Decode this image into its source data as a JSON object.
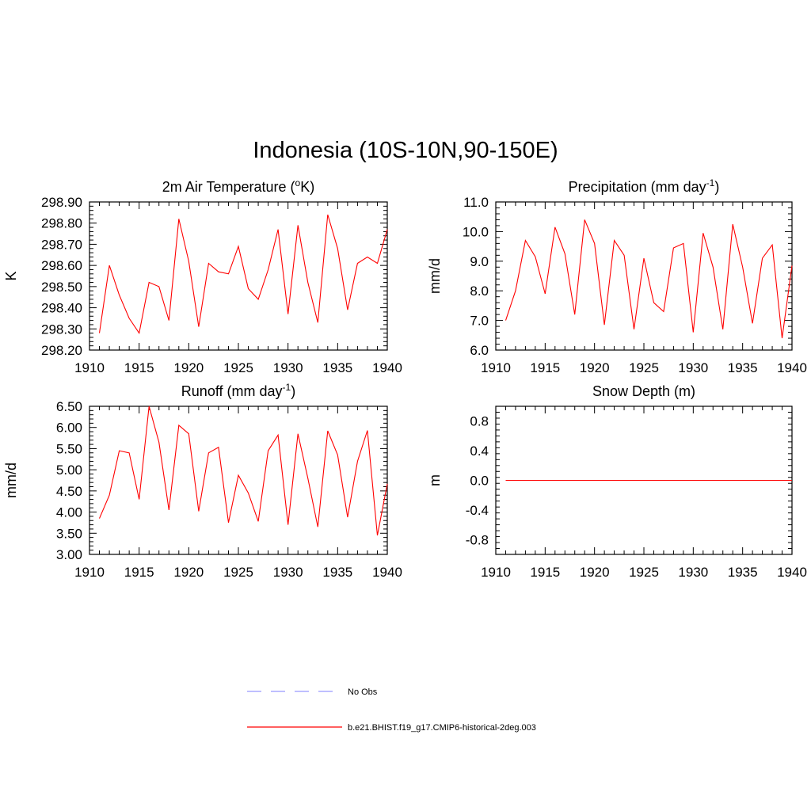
{
  "title": "Indonesia (10S-10N,90-150E)",
  "colors": {
    "model": "#ff0000",
    "obs": "#9999ff",
    "axis": "#000000"
  },
  "legend": {
    "placement": "bottom-center",
    "entries": [
      {
        "label": "No Obs",
        "style": "dashed",
        "color": "#9999ff"
      },
      {
        "label": "b.e21.BHIST.f19_g17.CMIP6-historical-2deg.003",
        "style": "solid",
        "color": "#ff0000"
      }
    ]
  },
  "chart_data": [
    {
      "type": "line",
      "title": "2m Air Temperature (oK)",
      "title_main": "2m Air Temperature (",
      "title_sup": "o",
      "title_after": "K)",
      "xlabel": "",
      "ylabel": "K",
      "xlim": [
        1910,
        1940
      ],
      "ylim": [
        298.2,
        298.9
      ],
      "xticks": [
        "1910",
        "1915",
        "1920",
        "1925",
        "1930",
        "1935",
        "1940"
      ],
      "yticks": [
        "298.20",
        "298.30",
        "298.40",
        "298.50",
        "298.60",
        "298.70",
        "298.80",
        "298.90"
      ],
      "grid": false,
      "series": [
        {
          "color": "#ff0000",
          "x": [
            1911,
            1912,
            1913,
            1914,
            1915,
            1916,
            1917,
            1918,
            1919,
            1920,
            1921,
            1922,
            1923,
            1924,
            1925,
            1926,
            1927,
            1928,
            1929,
            1930,
            1931,
            1932,
            1933,
            1934,
            1935,
            1936,
            1937,
            1938,
            1939,
            1940
          ],
          "values": [
            298.28,
            298.6,
            298.46,
            298.35,
            298.28,
            298.52,
            298.5,
            298.34,
            298.82,
            298.62,
            298.31,
            298.61,
            298.57,
            298.56,
            298.69,
            298.49,
            298.44,
            298.58,
            298.77,
            298.37,
            298.79,
            298.52,
            298.33,
            298.84,
            298.68,
            298.39,
            298.61,
            298.64,
            298.61,
            298.77
          ]
        }
      ]
    },
    {
      "type": "line",
      "title": "Precipitation (mm day-1)",
      "title_main": "Precipitation (mm day",
      "title_sup": "-1",
      "title_after": ")",
      "xlabel": "",
      "ylabel": "mm/d",
      "xlim": [
        1910,
        1940
      ],
      "ylim": [
        6.0,
        11.0
      ],
      "xticks": [
        "1910",
        "1915",
        "1920",
        "1925",
        "1930",
        "1935",
        "1940"
      ],
      "yticks": [
        "6.0",
        "7.0",
        "8.0",
        "9.0",
        "10.0",
        "11.0"
      ],
      "grid": false,
      "series": [
        {
          "color": "#ff0000",
          "x": [
            1911,
            1912,
            1913,
            1914,
            1915,
            1916,
            1917,
            1918,
            1919,
            1920,
            1921,
            1922,
            1923,
            1924,
            1925,
            1926,
            1927,
            1928,
            1929,
            1930,
            1931,
            1932,
            1933,
            1934,
            1935,
            1936,
            1937,
            1938,
            1939,
            1940
          ],
          "values": [
            7.0,
            8.0,
            9.7,
            9.15,
            7.9,
            10.15,
            9.25,
            7.2,
            10.4,
            9.6,
            6.85,
            9.7,
            9.2,
            6.7,
            9.1,
            7.6,
            7.3,
            9.45,
            9.6,
            6.6,
            9.95,
            8.8,
            6.7,
            10.25,
            8.8,
            6.9,
            9.1,
            9.55,
            6.4,
            8.85
          ]
        }
      ]
    },
    {
      "type": "line",
      "title": "Runoff (mm day-1)",
      "title_main": "Runoff (mm day",
      "title_sup": "-1",
      "title_after": ")",
      "xlabel": "",
      "ylabel": "mm/d",
      "xlim": [
        1910,
        1940
      ],
      "ylim": [
        3.0,
        6.5
      ],
      "xticks": [
        "1910",
        "1915",
        "1920",
        "1925",
        "1930",
        "1935",
        "1940"
      ],
      "yticks": [
        "3.00",
        "3.50",
        "4.00",
        "4.50",
        "5.00",
        "5.50",
        "6.00",
        "6.50"
      ],
      "grid": false,
      "series": [
        {
          "color": "#ff0000",
          "x": [
            1911,
            1912,
            1913,
            1914,
            1915,
            1916,
            1917,
            1918,
            1919,
            1920,
            1921,
            1922,
            1923,
            1924,
            1925,
            1926,
            1927,
            1928,
            1929,
            1930,
            1931,
            1932,
            1933,
            1934,
            1935,
            1936,
            1937,
            1938,
            1939,
            1940
          ],
          "values": [
            3.85,
            4.4,
            5.45,
            5.4,
            4.3,
            6.5,
            5.65,
            4.05,
            6.05,
            5.85,
            4.02,
            5.4,
            5.53,
            3.75,
            4.87,
            4.45,
            3.78,
            5.45,
            5.82,
            3.7,
            5.85,
            4.8,
            3.65,
            5.92,
            5.35,
            3.88,
            5.2,
            5.93,
            3.45,
            4.67
          ]
        }
      ]
    },
    {
      "type": "line",
      "title": "Snow Depth (m)",
      "title_main": "Snow Depth (m)",
      "title_sup": "",
      "title_after": "",
      "xlabel": "",
      "ylabel": "m",
      "xlim": [
        1910,
        1940
      ],
      "ylim": [
        -1.0,
        1.0
      ],
      "xticks": [
        "1910",
        "1915",
        "1920",
        "1925",
        "1930",
        "1935",
        "1940"
      ],
      "yticks": [
        "-0.8",
        "-0.4",
        "0.0",
        "0.4",
        "0.8"
      ],
      "grid": false,
      "series": [
        {
          "color": "#ff0000",
          "x": [
            1911,
            1912,
            1913,
            1914,
            1915,
            1916,
            1917,
            1918,
            1919,
            1920,
            1921,
            1922,
            1923,
            1924,
            1925,
            1926,
            1927,
            1928,
            1929,
            1930,
            1931,
            1932,
            1933,
            1934,
            1935,
            1936,
            1937,
            1938,
            1939,
            1940
          ],
          "values": [
            0,
            0,
            0,
            0,
            0,
            0,
            0,
            0,
            0,
            0,
            0,
            0,
            0,
            0,
            0,
            0,
            0,
            0,
            0,
            0,
            0,
            0,
            0,
            0,
            0,
            0,
            0,
            0,
            0,
            0
          ]
        }
      ]
    }
  ]
}
